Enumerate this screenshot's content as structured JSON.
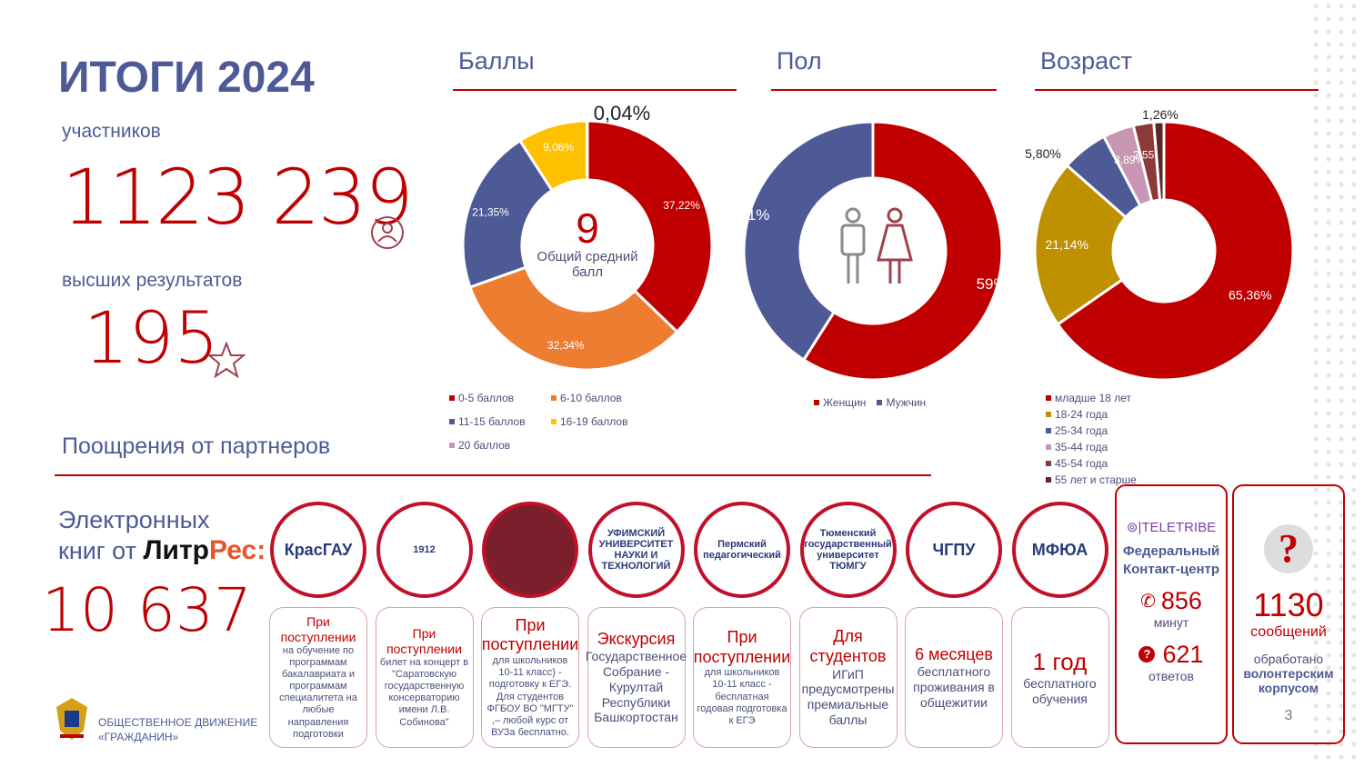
{
  "title": "ИТОГИ 2024",
  "participants": {
    "label": "участников",
    "value": "1123 239"
  },
  "top_results": {
    "label": "высших результатов",
    "value": "195"
  },
  "rewards_title": "Поощрения от партнеров",
  "ebooks": {
    "line1": "Электронных",
    "line2": "книг от",
    "brand_a": "Литр",
    "brand_b": "Рес:",
    "value": "10 637"
  },
  "org": {
    "line1": "ОБЩЕСТВЕННОЕ ДВИЖЕНИЕ",
    "line2": "«ГРАЖДАНИН»"
  },
  "chart_data": [
    {
      "type": "pie",
      "title": "Баллы",
      "center_value": "9",
      "center_label": "Общий средний балл",
      "categories": [
        "0-5 баллов",
        "6-10 баллов",
        "11-15 баллов",
        "16-19 баллов",
        "20 баллов"
      ],
      "values": [
        37.22,
        32.34,
        21.35,
        9.06,
        0.04
      ],
      "labels": [
        "37,22%",
        "32,34%",
        "21,35%",
        "9,06%",
        "0,04%"
      ],
      "colors": [
        "#c00000",
        "#ed7d31",
        "#4e5a96",
        "#ffc000",
        "#c896b4"
      ]
    },
    {
      "type": "pie",
      "title": "Пол",
      "categories": [
        "Женщин",
        "Мужчин"
      ],
      "values": [
        59,
        41
      ],
      "labels": [
        "59%",
        "41%"
      ],
      "colors": [
        "#c00000",
        "#4e5a96"
      ]
    },
    {
      "type": "pie",
      "title": "Возраст",
      "categories": [
        "младше 18 лет",
        "18-24 года",
        "25-34 года",
        "35-44 года",
        "45-54 года",
        "55 лет и старше"
      ],
      "values": [
        65.36,
        21.14,
        5.8,
        3.89,
        2.55,
        1.26
      ],
      "labels": [
        "65,36%",
        "21,14%",
        "5,80%",
        "3,89%",
        "2,55%",
        "1,26%"
      ],
      "colors": [
        "#c00000",
        "#bf9000",
        "#4e5a96",
        "#c896b4",
        "#8b3a3a",
        "#5c2626"
      ]
    }
  ],
  "partners": [
    {
      "logo": "КрасГАУ",
      "head": "При поступлении",
      "text": "на обучение по программам бакалавриата и программам специалитета на любые направления подготовки"
    },
    {
      "logo": "1912",
      "head": "При поступлении",
      "text": "билет на концерт в \"Саратовскую государственную консерваторию имени Л.В. Собинова\""
    },
    {
      "logo": "",
      "head": "При поступлении",
      "text": "для школьников 10-11 класс) - подготовку к ЕГЭ. Для студентов ФГБОУ ВО \"МГТУ\" ,– любой курс от ВУЗа бесплатно."
    },
    {
      "logo": "УФИМСКИЙ УНИВЕРСИТЕТ НАУКИ И ТЕХНОЛОГИЙ",
      "head": "Экскурсия",
      "text": "Государственное Собрание - Курултай Республики Башкортостан"
    },
    {
      "logo": "Пермский педагогический",
      "head": "При поступлении",
      "text": "для школьников 10-11 класс - бесплатная годовая подготовка к ЕГЭ"
    },
    {
      "logo": "Тюменский государственный университет ТЮМГУ",
      "head": "Для студентов",
      "text": "ИГиП предусмотрены премиальные баллы"
    },
    {
      "logo": "ЧГПУ",
      "head": "6 месяцев",
      "text": "бесплатного проживания в общежитии"
    },
    {
      "logo": "МФЮА",
      "head": "1 год",
      "text": "бесплатного обучения"
    }
  ],
  "teletribe": {
    "brand": "TELETRIBE",
    "title": "Федеральный Контакт-центр",
    "minutes": "856",
    "minutes_label": "минут",
    "answers": "621",
    "answers_label": "ответов"
  },
  "volunteers": {
    "value": "1130",
    "unit": "сообщений",
    "text1": "обработано",
    "text2": "волонтерским корпусом"
  },
  "page_number": "3"
}
